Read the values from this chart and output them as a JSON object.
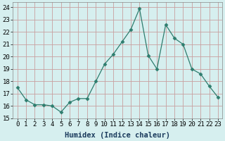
{
  "x": [
    0,
    1,
    2,
    3,
    4,
    5,
    6,
    7,
    8,
    9,
    10,
    11,
    12,
    13,
    14,
    15,
    16,
    17,
    18,
    19,
    20,
    21,
    22,
    23
  ],
  "y": [
    17.5,
    16.5,
    16.1,
    16.1,
    16.0,
    15.5,
    16.3,
    16.6,
    16.6,
    18.0,
    19.4,
    20.2,
    21.2,
    22.2,
    23.9,
    20.1,
    19.0,
    22.6,
    21.5,
    21.0,
    19.0,
    18.6,
    17.6,
    16.7
  ],
  "line_color": "#2e7d6e",
  "marker": "D",
  "marker_size": 2.5,
  "bg_color": "#d6efef",
  "grid_color": "#c8a0a0",
  "xlabel": "Humidex (Indice chaleur)",
  "ylim": [
    15,
    24.4
  ],
  "xlim": [
    -0.5,
    23.5
  ],
  "yticks": [
    15,
    16,
    17,
    18,
    19,
    20,
    21,
    22,
    23,
    24
  ],
  "xtick_labels": [
    "0",
    "1",
    "2",
    "3",
    "4",
    "5",
    "6",
    "7",
    "8",
    "9",
    "10",
    "11",
    "12",
    "13",
    "14",
    "15",
    "16",
    "17",
    "18",
    "19",
    "20",
    "21",
    "22",
    "23"
  ],
  "xlabel_fontsize": 7.5,
  "tick_fontsize": 6.5
}
